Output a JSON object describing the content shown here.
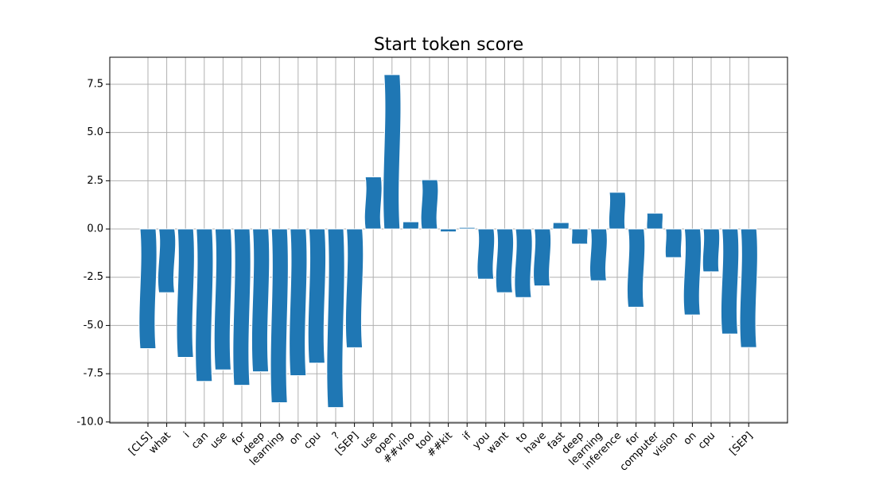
{
  "chart_data": {
    "type": "bar",
    "title": "Start token score",
    "categories": [
      "[CLS]",
      "what",
      "i",
      "can",
      "use",
      "for",
      "deep",
      "learning",
      "on",
      "cpu",
      "?",
      "[SEP]",
      "use",
      "open",
      "##vino",
      "tool",
      "##kit",
      "if",
      "you",
      "want",
      "to",
      "have",
      "fast",
      "deep",
      "learning",
      "inference",
      "for",
      "computer",
      "vision",
      "on",
      "cpu",
      ".",
      "[SEP]"
    ],
    "values": [
      -6.2,
      -3.3,
      -6.65,
      -7.9,
      -7.3,
      -8.1,
      -7.4,
      -9.0,
      -7.6,
      -6.95,
      -9.25,
      -6.15,
      2.7,
      8.0,
      0.37,
      2.55,
      -0.15,
      0.08,
      -2.6,
      -3.3,
      -3.55,
      -2.95,
      0.33,
      -0.78,
      -2.68,
      1.9,
      -4.05,
      0.82,
      -1.48,
      -4.45,
      -2.22,
      -5.44,
      -6.14
    ],
    "color": "#1f77b4",
    "ylim": [
      -10.05,
      8.9
    ],
    "yticks": [
      {
        "value": -10,
        "label": "-10.0"
      },
      -7.5,
      {
        "value": -5,
        "label": "-5.0"
      },
      -2.5,
      {
        "value": 0,
        "label": "0.0"
      },
      2.5,
      {
        "value": 5,
        "label": "5.0"
      },
      7.5
    ],
    "grid": true
  }
}
